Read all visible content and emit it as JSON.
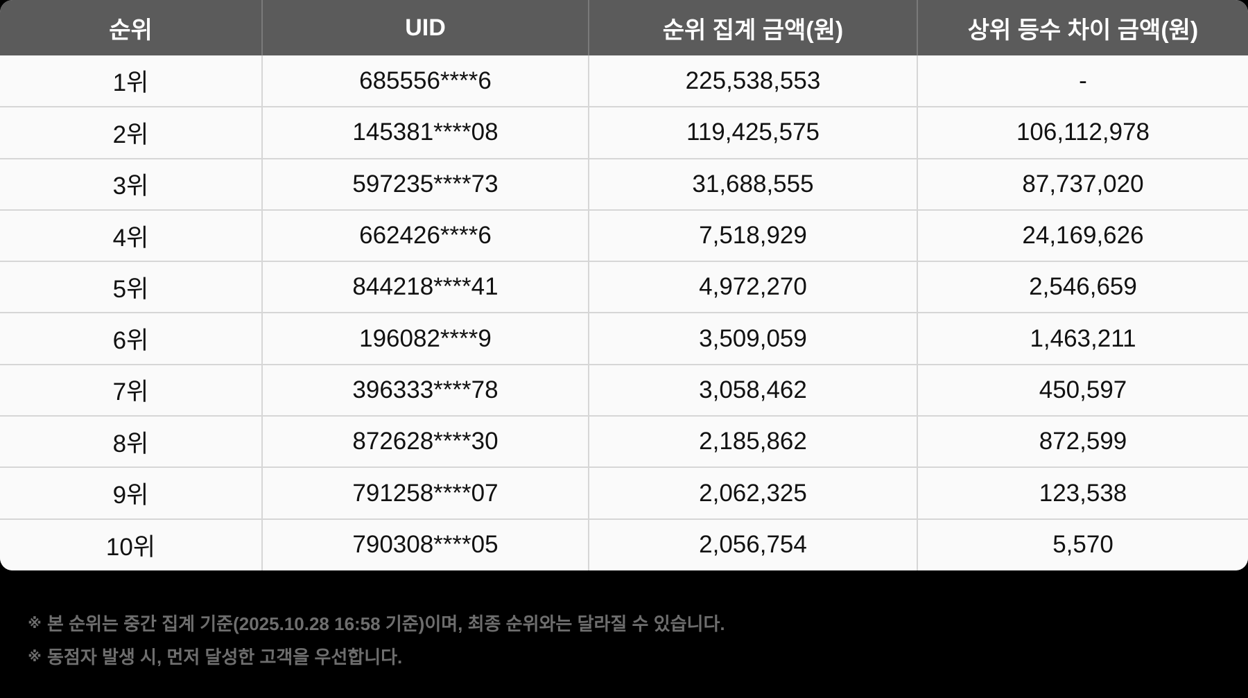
{
  "table": {
    "headers": [
      "순위",
      "UID",
      "순위 집계  금액(원)",
      "상위 등수 차이 금액(원)"
    ],
    "rows": [
      {
        "rank": "1위",
        "uid": "685556****6",
        "amount": "225,538,553",
        "diff": "-"
      },
      {
        "rank": "2위",
        "uid": "145381****08",
        "amount": "119,425,575",
        "diff": "106,112,978"
      },
      {
        "rank": "3위",
        "uid": "597235****73",
        "amount": "31,688,555",
        "diff": "87,737,020"
      },
      {
        "rank": "4위",
        "uid": "662426****6",
        "amount": "7,518,929",
        "diff": "24,169,626"
      },
      {
        "rank": "5위",
        "uid": "844218****41",
        "amount": "4,972,270",
        "diff": "2,546,659"
      },
      {
        "rank": "6위",
        "uid": "196082****9",
        "amount": "3,509,059",
        "diff": "1,463,211"
      },
      {
        "rank": "7위",
        "uid": "396333****78",
        "amount": "3,058,462",
        "diff": "450,597"
      },
      {
        "rank": "8위",
        "uid": "872628****30",
        "amount": "2,185,862",
        "diff": "872,599"
      },
      {
        "rank": "9위",
        "uid": "791258****07",
        "amount": "2,062,325",
        "diff": "123,538"
      },
      {
        "rank": "10위",
        "uid": "790308****05",
        "amount": "2,056,754",
        "diff": "5,570"
      }
    ]
  },
  "notes": {
    "marker": "※",
    "items": [
      "본 순위는 중간 집계 기준(2025.10.28 16:58 기준)이며, 최종 순위와는 달라질 수 있습니다.",
      "동점자 발생 시, 먼저 달성한 고객을 우선합니다."
    ]
  },
  "colors": {
    "header_bg": "#5b5b5b",
    "header_text": "#ffffff",
    "row_bg": "#fafafa",
    "grid_line": "#d6d6d6",
    "page_bg": "#000000",
    "note_text": "#6e6e6e"
  }
}
